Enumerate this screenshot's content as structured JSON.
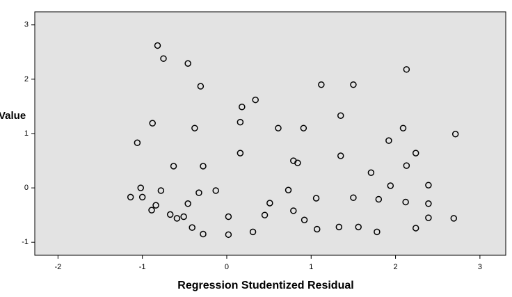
{
  "chart_data": {
    "type": "scatter",
    "x_label": "Regression Studentized Residual",
    "y_label": "Value",
    "x": [
      -0.82,
      -0.75,
      -0.46,
      -0.31,
      -0.88,
      -1.06,
      -0.38,
      -0.63,
      -0.28,
      -1.02,
      -1.14,
      -1.0,
      -0.78,
      -0.84,
      -0.89,
      -0.46,
      -0.33,
      -0.13,
      -0.67,
      -0.59,
      -0.51,
      -0.41,
      -0.28,
      0.02,
      0.02,
      0.18,
      0.34,
      0.16,
      0.16,
      0.31,
      0.45,
      0.51,
      0.61,
      0.73,
      0.79,
      0.84,
      0.91,
      0.79,
      0.92,
      1.06,
      1.07,
      1.12,
      1.35,
      1.5,
      1.35,
      1.5,
      1.33,
      1.56,
      1.71,
      1.8,
      1.78,
      1.92,
      1.94,
      2.13,
      2.09,
      2.13,
      2.12,
      2.24,
      2.24,
      2.39,
      2.39,
      2.39,
      2.71,
      2.69
    ],
    "values": [
      2.62,
      2.38,
      2.29,
      1.87,
      1.19,
      0.83,
      1.1,
      0.4,
      0.4,
      0.0,
      -0.17,
      -0.17,
      -0.05,
      -0.32,
      -0.41,
      -0.29,
      -0.09,
      -0.05,
      -0.49,
      -0.56,
      -0.53,
      -0.73,
      -0.85,
      -0.53,
      -0.86,
      1.49,
      1.62,
      1.21,
      0.64,
      -0.81,
      -0.5,
      -0.28,
      1.1,
      -0.04,
      0.5,
      0.46,
      1.1,
      -0.42,
      -0.59,
      -0.19,
      -0.76,
      1.9,
      1.33,
      1.9,
      0.59,
      -0.18,
      -0.72,
      -0.72,
      0.28,
      -0.21,
      -0.81,
      0.87,
      0.04,
      2.18,
      1.1,
      0.41,
      -0.26,
      0.64,
      -0.74,
      0.05,
      -0.29,
      -0.55,
      0.99,
      -0.56
    ],
    "xlim": [
      -2.275,
      3.306
    ],
    "ylim": [
      -1.24,
      3.24
    ],
    "xticks": [
      -2,
      -1,
      0,
      1,
      2,
      3
    ],
    "yticks": [
      -1,
      0,
      1,
      2,
      3
    ],
    "background": "#e3e3e3",
    "marker_color": "#000000"
  }
}
